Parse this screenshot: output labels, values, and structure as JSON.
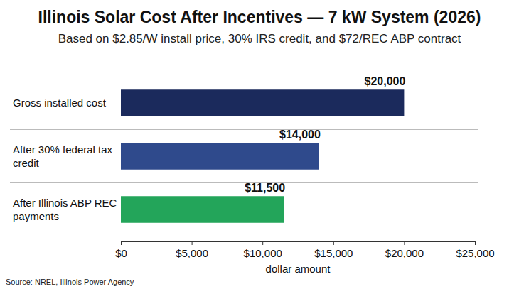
{
  "chart_data": {
    "type": "bar",
    "orientation": "horizontal",
    "title": "Illinois Solar Cost After Incentives — 7 kW System (2026)",
    "subtitle": "Based on $2.85/W install price, 30% IRS credit, and $72/REC ABP contract",
    "x_label": "dollar amount",
    "source": "Source: NREL, Illinois Power Agency",
    "categories": [
      "Gross installed cost",
      "After 30% federal tax credit",
      "After Illinois ABP REC payments"
    ],
    "values": [
      20000,
      14000,
      11500
    ],
    "value_labels": [
      "$20,000",
      "$14,000",
      "$11,500"
    ],
    "colors": [
      "#1b2a5c",
      "#2f4a8c",
      "#23a55a"
    ],
    "xlim": [
      0,
      25000
    ],
    "xticks": [
      {
        "value": 0,
        "label": "$0"
      },
      {
        "value": 5000,
        "label": "$5,000"
      },
      {
        "value": 10000,
        "label": "$10,000"
      },
      {
        "value": 15000,
        "label": "$15,000"
      },
      {
        "value": 20000,
        "label": "$20,000"
      },
      {
        "value": 25000,
        "label": "$25,000"
      }
    ],
    "grid": false,
    "data_labels": true
  }
}
